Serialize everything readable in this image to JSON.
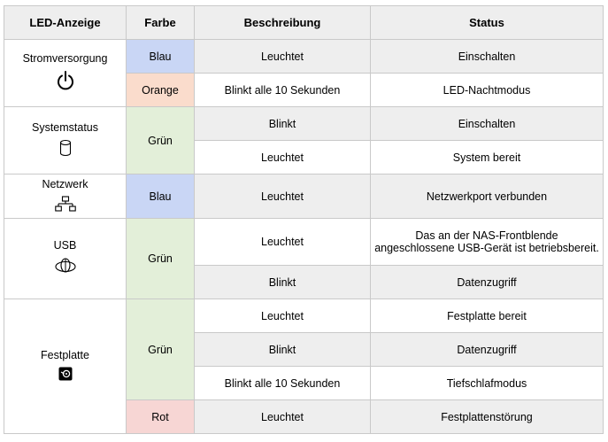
{
  "headers": {
    "led": "LED-Anzeige",
    "farbe": "Farbe",
    "beschreibung": "Beschreibung",
    "status": "Status"
  },
  "groups": {
    "strom": {
      "name": "Stromversorgung",
      "icon": "power-icon",
      "rows": [
        {
          "farbe": "Blau",
          "beschreibung": "Leuchtet",
          "status": "Einschalten"
        },
        {
          "farbe": "Orange",
          "beschreibung": "Blinkt alle 10 Sekunden",
          "status": "LED-Nachtmodus"
        }
      ]
    },
    "system": {
      "name": "Systemstatus",
      "icon": "cylinder-icon",
      "farbe": "Grün",
      "rows": [
        {
          "beschreibung": "Blinkt",
          "status": "Einschalten"
        },
        {
          "beschreibung": "Leuchtet",
          "status": "System bereit"
        }
      ]
    },
    "netz": {
      "name": "Netzwerk",
      "icon": "network-icon",
      "farbe": "Blau",
      "rows": [
        {
          "beschreibung": "Leuchtet",
          "status": "Netzwerkport verbunden"
        }
      ]
    },
    "usb": {
      "name": "USB",
      "icon": "usb-device-icon",
      "farbe": "Grün",
      "rows": [
        {
          "beschreibung": "Leuchtet",
          "status": "Das an der NAS-Frontblende angeschlossene USB-Gerät ist betriebsbereit."
        },
        {
          "beschreibung": "Blinkt",
          "status": "Datenzugriff"
        }
      ]
    },
    "hdd": {
      "name": "Festplatte",
      "icon": "disk-icon",
      "farbe_gruen": "Grün",
      "farbe_rot": "Rot",
      "rows": [
        {
          "beschreibung": "Leuchtet",
          "status": "Festplatte bereit"
        },
        {
          "beschreibung": "Blinkt",
          "status": "Datenzugriff"
        },
        {
          "beschreibung": "Blinkt alle 10 Sekunden",
          "status": "Tiefschlafmodus"
        },
        {
          "beschreibung": "Leuchtet",
          "status": "Festplattenstörung"
        }
      ]
    }
  },
  "colors": {
    "blau": "#c9d6f5",
    "orange": "#fadccc",
    "gruen": "#e3efd9",
    "rot": "#f7d6d4",
    "grau": "#eeeeee"
  }
}
